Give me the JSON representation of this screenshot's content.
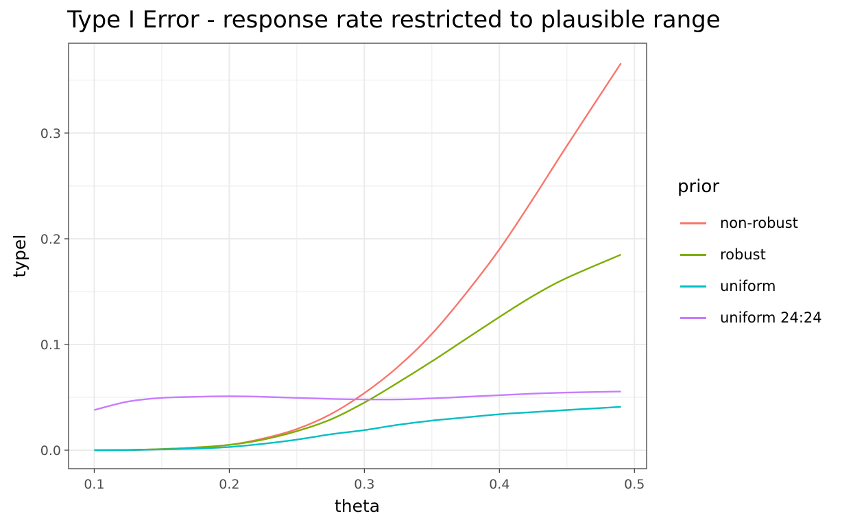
{
  "chart_data": {
    "type": "line",
    "title": "Type I Error - response rate restricted to plausible range",
    "xlabel": "theta",
    "ylabel": "typeI",
    "xlim": [
      0.081,
      0.509
    ],
    "ylim": [
      -0.0175,
      0.385
    ],
    "x_ticks": [
      0.1,
      0.2,
      0.3,
      0.4,
      0.5
    ],
    "x_tick_labels": [
      "0.1",
      "0.2",
      "0.3",
      "0.4",
      "0.5"
    ],
    "y_ticks": [
      0.0,
      0.1,
      0.2,
      0.3
    ],
    "y_tick_labels": [
      "0.0",
      "0.1",
      "0.2",
      "0.3"
    ],
    "grid": true,
    "legend": {
      "title": "prior",
      "position": "right"
    },
    "x": [
      0.1,
      0.125,
      0.15,
      0.175,
      0.2,
      0.225,
      0.25,
      0.275,
      0.3,
      0.325,
      0.35,
      0.375,
      0.4,
      0.425,
      0.45,
      0.49
    ],
    "series": [
      {
        "name": "non-robust",
        "color": "#F8766D",
        "values": [
          0.0,
          0.0002,
          0.001,
          0.0025,
          0.005,
          0.011,
          0.02,
          0.034,
          0.054,
          0.079,
          0.11,
          0.148,
          0.19,
          0.238,
          0.288,
          0.366
        ]
      },
      {
        "name": "robust",
        "color": "#7CAE00",
        "values": [
          0.0,
          0.0002,
          0.001,
          0.0025,
          0.005,
          0.01,
          0.018,
          0.029,
          0.045,
          0.064,
          0.084,
          0.105,
          0.126,
          0.146,
          0.163,
          0.185
        ]
      },
      {
        "name": "uniform",
        "color": "#00BFC4",
        "values": [
          0.0,
          0.0002,
          0.0007,
          0.0015,
          0.003,
          0.006,
          0.01,
          0.015,
          0.019,
          0.024,
          0.028,
          0.031,
          0.034,
          0.036,
          0.038,
          0.041
        ]
      },
      {
        "name": "uniform 24:24",
        "color": "#C77CFF",
        "values": [
          0.038,
          0.046,
          0.0495,
          0.0505,
          0.051,
          0.0505,
          0.0495,
          0.0485,
          0.048,
          0.048,
          0.049,
          0.0505,
          0.052,
          0.0535,
          0.0545,
          0.0555
        ]
      }
    ]
  }
}
